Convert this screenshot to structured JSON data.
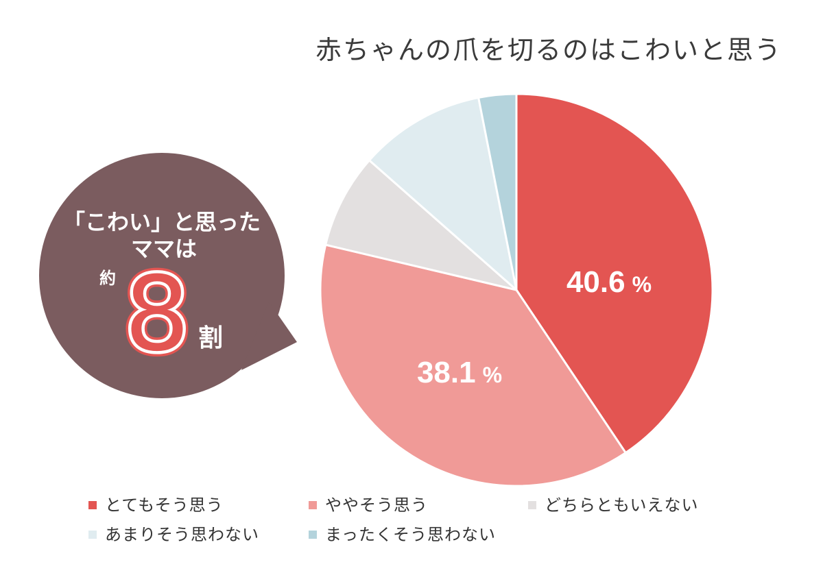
{
  "chart_data": {
    "type": "pie",
    "title": "赤ちゃんの爪を切るのはこわいと思う",
    "unit": "%",
    "legend": "bottom",
    "slices": [
      {
        "label": "とてもそう思う",
        "value": 40.6,
        "color": "#E35552",
        "show_value": true
      },
      {
        "label": "ややそう思う",
        "value": 38.1,
        "color": "#F09A97",
        "show_value": true
      },
      {
        "label": "どちらともいえない",
        "value": 7.8,
        "color": "#E3E0E0",
        "show_value": false
      },
      {
        "label": "あまりそう思わない",
        "value": 10.4,
        "color": "#E0ECF0",
        "show_value": false
      },
      {
        "label": "まったくそう思わない",
        "value": 3.1,
        "color": "#B4D3DC",
        "show_value": false
      }
    ]
  },
  "callout": {
    "line1": "「こわい」と思った",
    "line2": "ママは",
    "prefix": "約",
    "number": "8",
    "suffix": "割",
    "background_color": "#7B5C5F",
    "number_color": "#E35552"
  }
}
